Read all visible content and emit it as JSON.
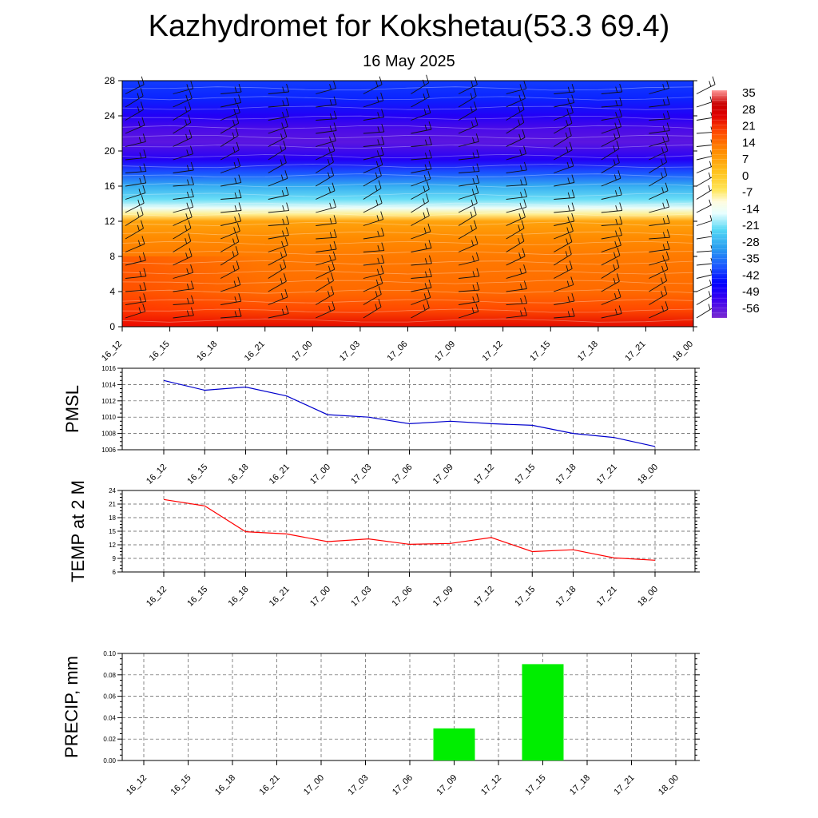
{
  "header": {
    "title": "Kazhydromet for Kokshetau(53.3 69.4)",
    "subtitle": "16 May 2025"
  },
  "chart_data": [
    {
      "type": "heatmap",
      "time_labels": [
        "16_12",
        "16_15",
        "16_18",
        "16_21",
        "17_00",
        "17_03",
        "17_06",
        "17_09",
        "17_12",
        "17_15",
        "17_18",
        "17_21",
        "18_00"
      ],
      "y_ticks": [
        0,
        4,
        8,
        12,
        16,
        20,
        24,
        28
      ],
      "ylim": [
        0,
        28
      ],
      "colorbar": {
        "labels": [
          35,
          28,
          21,
          14,
          7,
          0,
          -7,
          -14,
          -21,
          -28,
          -35,
          -42,
          -49,
          -56
        ],
        "range": [
          -60,
          38
        ]
      },
      "temperature_profile": {
        "height": [
          0,
          2,
          4,
          6,
          8,
          10,
          12,
          12.8,
          13.5,
          14.5,
          16,
          17.5,
          19,
          21,
          22.5,
          24,
          26,
          28
        ],
        "value": [
          26,
          20,
          16,
          15,
          14,
          12,
          8,
          -7,
          -14,
          -21,
          -28,
          -38,
          -49,
          -56,
          -54,
          -49,
          -42,
          -40
        ]
      },
      "wind_barbs": true
    },
    {
      "type": "line",
      "ylabel": "PMSL",
      "x": [
        "16_12",
        "16_15",
        "16_18",
        "16_21",
        "17_00",
        "17_03",
        "17_06",
        "17_09",
        "17_12",
        "17_15",
        "17_18",
        "17_21",
        "18_00"
      ],
      "series": [
        {
          "values": [
            1014.5,
            1013.3,
            1013.7,
            1012.6,
            1010.3,
            1010.0,
            1009.2,
            1009.5,
            1009.2,
            1009.0,
            1008.0,
            1007.5,
            1006.4
          ]
        }
      ],
      "ylim": [
        1006,
        1016
      ],
      "y_ticks": [
        1006,
        1008,
        1010,
        1012,
        1014,
        1016
      ],
      "color": "#0000cc"
    },
    {
      "type": "line",
      "ylabel": "TEMP at 2 M",
      "x": [
        "16_12",
        "16_15",
        "16_18",
        "16_21",
        "17_00",
        "17_03",
        "17_06",
        "17_09",
        "17_12",
        "17_15",
        "17_18",
        "17_21",
        "18_00"
      ],
      "series": [
        {
          "values": [
            22.0,
            20.6,
            14.9,
            14.4,
            12.7,
            13.3,
            12.1,
            12.3,
            13.6,
            10.5,
            10.9,
            9.1,
            8.6
          ]
        }
      ],
      "ylim": [
        6,
        24
      ],
      "y_ticks": [
        6,
        9,
        12,
        15,
        18,
        21,
        24
      ],
      "color": "#ff0000"
    },
    {
      "type": "bar",
      "ylabel": "PRECIP, mm",
      "categories": [
        "16_12",
        "16_15",
        "16_18",
        "16_21",
        "17_00",
        "17_03",
        "17_06",
        "17_09",
        "17_12",
        "17_15",
        "17_18",
        "17_21",
        "18_00"
      ],
      "values": [
        0,
        0,
        0,
        0,
        0,
        0,
        0,
        0.03,
        0,
        0.09,
        0,
        0,
        0
      ],
      "ylim": [
        0,
        0.1
      ],
      "y_ticks": [
        "0.00",
        "0.02",
        "0.04",
        "0.06",
        "0.08",
        "0.10"
      ],
      "color": "#00ee00"
    }
  ]
}
